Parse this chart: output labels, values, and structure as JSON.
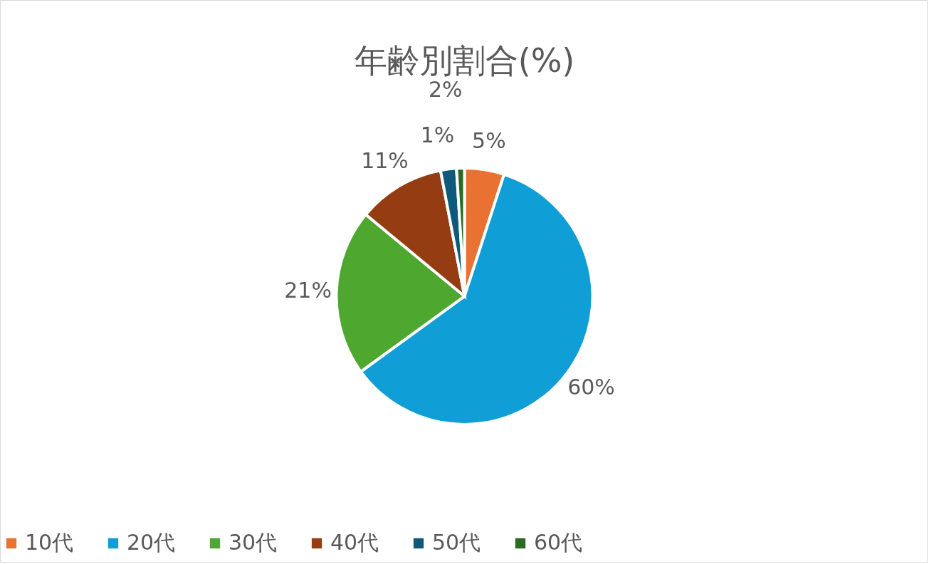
{
  "chart_data": {
    "type": "pie",
    "title": "年齢別割合(%)",
    "categories": [
      "10代",
      "20代",
      "30代",
      "40代",
      "50代",
      "60代"
    ],
    "values": [
      5,
      60,
      21,
      11,
      2,
      1
    ],
    "colors": [
      "#e97132",
      "#0f9ed5",
      "#4ea72e",
      "#953c12",
      "#0f5a7a",
      "#2a6a22"
    ],
    "value_labels": [
      "5%",
      "60%",
      "21%",
      "11%",
      "2%",
      "1%"
    ],
    "legend": "bottom"
  }
}
